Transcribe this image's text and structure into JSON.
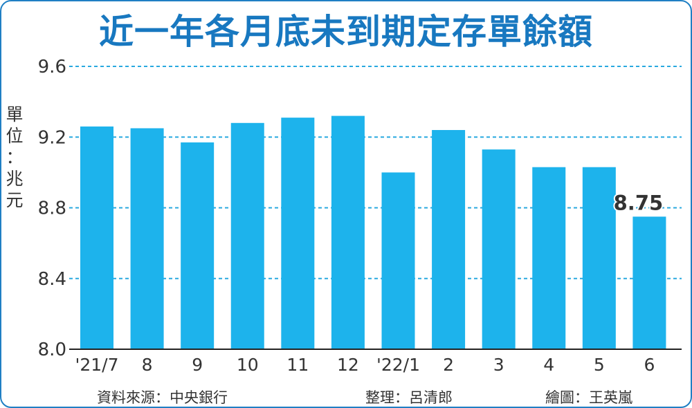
{
  "title": "近一年各月底未到期定存單餘額",
  "unit_label": "單位：兆元",
  "footer": {
    "source": "資料來源：中央銀行",
    "editor": "整理：呂清郎",
    "artist": "繪圖：王英嵐"
  },
  "colors": {
    "bar": "#1db3ec",
    "grid": "#29a9df",
    "title": "#1878c0",
    "frame": "#1f7fc4"
  },
  "chart_data": {
    "type": "bar",
    "categories": [
      "'21/7",
      "8",
      "9",
      "10",
      "11",
      "12",
      "'22/1",
      "2",
      "3",
      "4",
      "5",
      "6"
    ],
    "values": [
      9.26,
      9.25,
      9.17,
      9.28,
      9.31,
      9.32,
      9.0,
      9.24,
      9.13,
      9.03,
      9.03,
      8.75
    ],
    "ylim": [
      8.0,
      9.6
    ],
    "yticks": [
      "9.6",
      "9.2",
      "8.8",
      "8.4",
      "8.0"
    ],
    "grid": "dashed horizontal",
    "annotation": {
      "category_index": 11,
      "text": "8.75"
    }
  }
}
